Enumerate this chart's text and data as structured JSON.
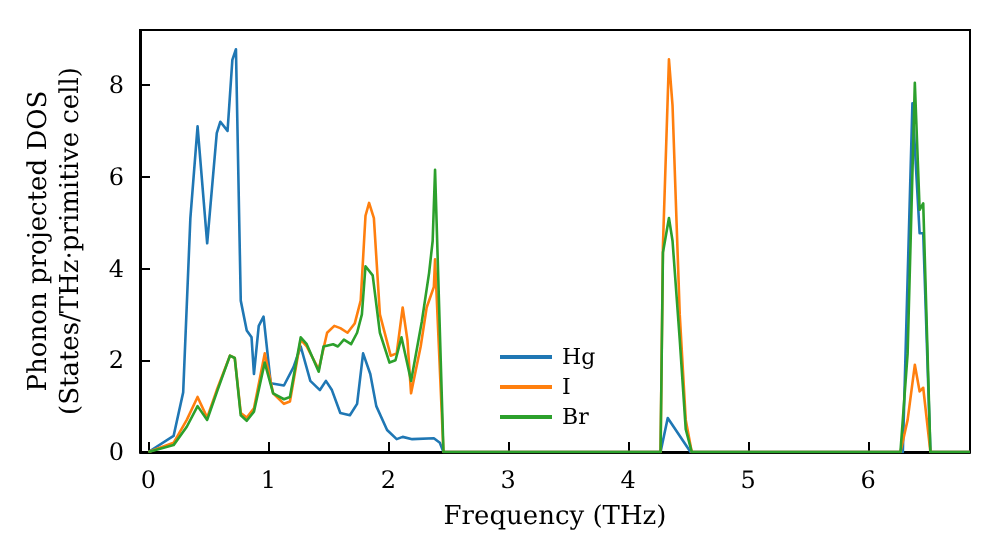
{
  "chart_data": {
    "type": "line",
    "xlabel": "Frequency (THz)",
    "ylabel": "Phonon projected DOS\n(States/THz·primitive cell)",
    "xlim": [
      -0.07,
      6.85
    ],
    "ylim": [
      0,
      9.2
    ],
    "xticks": [
      0,
      1,
      2,
      3,
      4,
      5,
      6
    ],
    "yticks": [
      0,
      2,
      4,
      6,
      8
    ],
    "grid": false,
    "legend": "bottom",
    "marker": "none",
    "line_style": "solid",
    "series": [
      {
        "name": "Hg",
        "color": "#1f77b4",
        "x": [
          0,
          0.21,
          0.29,
          0.35,
          0.41,
          0.49,
          0.57,
          0.6,
          0.66,
          0.7,
          0.73,
          0.77,
          0.82,
          0.86,
          0.88,
          0.92,
          0.96,
          1.02,
          1.13,
          1.21,
          1.27,
          1.35,
          1.43,
          1.48,
          1.53,
          1.6,
          1.68,
          1.74,
          1.79,
          1.85,
          1.9,
          1.99,
          2.07,
          2.12,
          2.2,
          2.38,
          2.43,
          2.46,
          4.27,
          4.33,
          4.52,
          6.29,
          6.37,
          6.43,
          6.46,
          6.52,
          6.85
        ],
        "values": [
          0,
          0.35,
          1.3,
          5.1,
          7.1,
          4.55,
          6.95,
          7.2,
          7.0,
          8.55,
          8.78,
          3.3,
          2.65,
          2.5,
          1.7,
          2.75,
          2.95,
          1.5,
          1.45,
          1.85,
          2.3,
          1.55,
          1.35,
          1.55,
          1.35,
          0.85,
          0.8,
          1.05,
          2.15,
          1.7,
          1.0,
          0.48,
          0.28,
          0.33,
          0.28,
          0.3,
          0.2,
          0,
          0,
          0.74,
          0,
          0,
          7.6,
          4.77,
          4.77,
          0,
          0
        ]
      },
      {
        "name": "I",
        "color": "#ff7f0e",
        "x": [
          0,
          0.21,
          0.32,
          0.41,
          0.49,
          0.57,
          0.68,
          0.72,
          0.77,
          0.82,
          0.88,
          0.97,
          1.04,
          1.13,
          1.18,
          1.27,
          1.32,
          1.42,
          1.49,
          1.55,
          1.6,
          1.66,
          1.72,
          1.77,
          1.81,
          1.84,
          1.88,
          1.93,
          2.02,
          2.07,
          2.12,
          2.16,
          2.19,
          2.27,
          2.32,
          2.38,
          2.39,
          2.46,
          4.27,
          4.29,
          4.34,
          4.37,
          4.43,
          4.48,
          4.53,
          6.27,
          6.33,
          6.39,
          6.43,
          6.46,
          6.52,
          6.85
        ],
        "values": [
          0,
          0.2,
          0.7,
          1.2,
          0.75,
          1.35,
          2.1,
          2.05,
          0.85,
          0.75,
          0.95,
          2.15,
          1.28,
          1.05,
          1.1,
          2.45,
          2.3,
          1.8,
          2.6,
          2.75,
          2.7,
          2.6,
          2.8,
          3.3,
          5.15,
          5.43,
          5.1,
          3.0,
          2.1,
          2.15,
          3.15,
          2.43,
          1.28,
          2.3,
          3.15,
          3.6,
          4.2,
          0,
          0,
          4.5,
          8.56,
          7.55,
          3.0,
          0.7,
          0,
          0,
          0.7,
          1.9,
          1.32,
          1.4,
          0,
          0
        ]
      },
      {
        "name": "Br",
        "color": "#2ca02c",
        "x": [
          0,
          0.21,
          0.32,
          0.41,
          0.49,
          0.57,
          0.68,
          0.72,
          0.77,
          0.82,
          0.88,
          0.97,
          1.04,
          1.13,
          1.18,
          1.27,
          1.32,
          1.42,
          1.46,
          1.54,
          1.58,
          1.63,
          1.69,
          1.74,
          1.78,
          1.81,
          1.87,
          1.93,
          2.01,
          2.06,
          2.11,
          2.19,
          2.28,
          2.34,
          2.37,
          2.39,
          2.46,
          4.27,
          4.29,
          4.34,
          4.37,
          4.43,
          4.48,
          4.53,
          6.27,
          6.33,
          6.39,
          6.43,
          6.46,
          6.52,
          6.85
        ],
        "values": [
          0,
          0.15,
          0.55,
          1.0,
          0.7,
          1.3,
          2.1,
          2.05,
          0.8,
          0.68,
          0.88,
          1.95,
          1.28,
          1.15,
          1.2,
          2.5,
          2.35,
          1.75,
          2.3,
          2.35,
          2.3,
          2.45,
          2.35,
          2.6,
          3.0,
          4.05,
          3.85,
          2.6,
          1.95,
          2.0,
          2.5,
          1.55,
          2.85,
          3.9,
          4.6,
          6.15,
          0,
          0,
          4.35,
          5.1,
          4.6,
          2.45,
          0.5,
          0,
          0,
          2.15,
          8.05,
          5.28,
          5.42,
          0,
          0
        ]
      }
    ]
  }
}
